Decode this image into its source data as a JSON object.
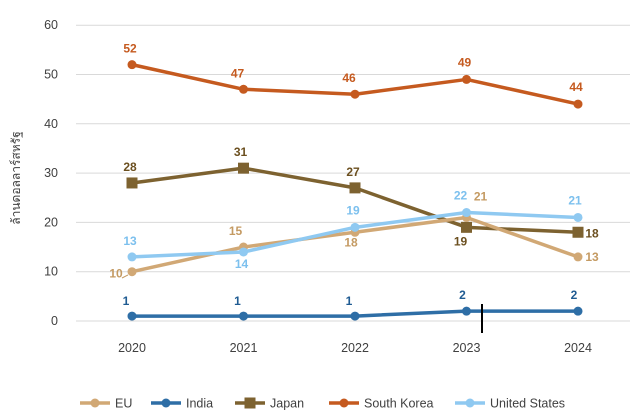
{
  "chart_data": {
    "type": "line",
    "title": "",
    "xlabel": "",
    "ylabel": "ล้านดอลลาร์สหรัฐ",
    "ylim": [
      0,
      60
    ],
    "yticks": [
      0,
      10,
      20,
      30,
      40,
      50,
      60
    ],
    "categories": [
      "2020",
      "2021",
      "2022",
      "2023",
      "2024"
    ],
    "grid": "horizontal",
    "legend_position": "bottom",
    "series": [
      {
        "name": "EU",
        "color": "#d1a875",
        "marker": "circle",
        "values": [
          10,
          15,
          18,
          21,
          13
        ],
        "labels": [
          "10",
          "15",
          "18",
          "21",
          "13"
        ]
      },
      {
        "name": "India",
        "color": "#2e6ea6",
        "marker": "circle",
        "values": [
          1,
          1,
          1,
          2,
          2
        ],
        "labels": [
          "1",
          "1",
          "1",
          "2",
          "2"
        ]
      },
      {
        "name": "Japan",
        "color": "#7d6230",
        "marker": "square",
        "values": [
          28,
          31,
          27,
          19,
          18
        ],
        "labels": [
          "28",
          "31",
          "27",
          "19",
          "18"
        ]
      },
      {
        "name": "South Korea",
        "color": "#c55a1f",
        "marker": "circle",
        "values": [
          52,
          47,
          46,
          49,
          44
        ],
        "labels": [
          "52",
          "47",
          "46",
          "49",
          "44"
        ]
      },
      {
        "name": "United States",
        "color": "#8fc9f1",
        "marker": "circle",
        "values": [
          13,
          14,
          19,
          22,
          21
        ],
        "labels": [
          "13",
          "14",
          "19",
          "22",
          "21"
        ]
      }
    ]
  }
}
